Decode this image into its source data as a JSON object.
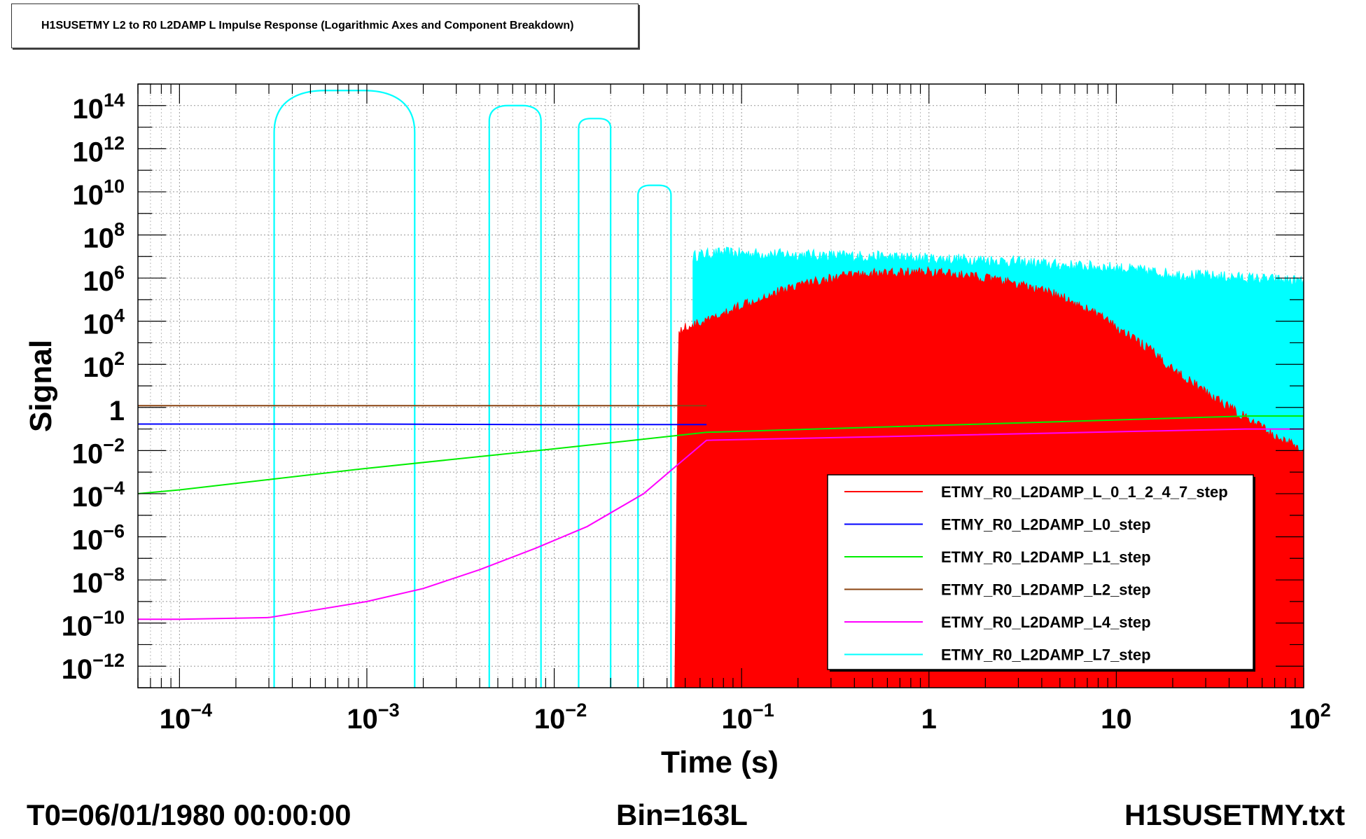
{
  "title": "H1SUSETMY L2 to R0 L2DAMP L Impulse Response (Logarithmic Axes and Component Breakdown)",
  "footer": {
    "t0": "T0=06/01/1980 00:00:00",
    "bin": "Bin=163L",
    "file": "H1SUSETMY.txt"
  },
  "chart_data": {
    "type": "line",
    "title": "H1SUSETMY L2 to R0 L2DAMP L Impulse Response (Logarithmic Axes and Component Breakdown)",
    "xlabel": "Time (s)",
    "ylabel": "Signal",
    "xscale": "log",
    "yscale": "log",
    "xlim": [
      6e-05,
      100
    ],
    "ylim": [
      1e-13,
      1000000000000000.0
    ],
    "x_ticks": [
      {
        "value": 0.0001,
        "base": "10",
        "exp": "−4"
      },
      {
        "value": 0.001,
        "base": "10",
        "exp": "−3"
      },
      {
        "value": 0.01,
        "base": "10",
        "exp": "−2"
      },
      {
        "value": 0.1,
        "base": "10",
        "exp": "−1"
      },
      {
        "value": 1,
        "base": "1",
        "exp": ""
      },
      {
        "value": 10,
        "base": "10",
        "exp": ""
      },
      {
        "value": 100,
        "base": "10",
        "exp": "2"
      }
    ],
    "y_ticks": [
      {
        "value": 100000000000000.0,
        "base": "10",
        "exp": "14"
      },
      {
        "value": 1000000000000.0,
        "base": "10",
        "exp": "12"
      },
      {
        "value": 10000000000.0,
        "base": "10",
        "exp": "10"
      },
      {
        "value": 100000000.0,
        "base": "10",
        "exp": "8"
      },
      {
        "value": 1000000.0,
        "base": "10",
        "exp": "6"
      },
      {
        "value": 10000.0,
        "base": "10",
        "exp": "4"
      },
      {
        "value": 100.0,
        "base": "10",
        "exp": "2"
      },
      {
        "value": 1,
        "base": "1",
        "exp": ""
      },
      {
        "value": 0.01,
        "base": "10",
        "exp": "−2"
      },
      {
        "value": 0.0001,
        "base": "10",
        "exp": "−4"
      },
      {
        "value": 1e-06,
        "base": "10",
        "exp": "−6"
      },
      {
        "value": 1e-08,
        "base": "10",
        "exp": "−8"
      },
      {
        "value": 1e-10,
        "base": "10",
        "exp": "−10"
      },
      {
        "value": 1e-12,
        "base": "10",
        "exp": "−12"
      }
    ],
    "grid": true,
    "legend_position": "bottom-right",
    "series": [
      {
        "name": "ETMY_R0_L2DAMP_L_0_1_2_4_7_step",
        "color": "#ff0000",
        "style": "filled-noise",
        "x": [
          0.044,
          0.046,
          0.05,
          0.06,
          0.08,
          0.1,
          0.2,
          0.4,
          1,
          2,
          3,
          5,
          8,
          10,
          15,
          20,
          30,
          50,
          70,
          100
        ],
        "y": [
          1e-13,
          3000.0,
          5000.0,
          8000.0,
          20000.0,
          60000.0,
          500000.0,
          1500000.0,
          2000000.0,
          1000000.0,
          500000.0,
          150000.0,
          20000.0,
          5000.0,
          500.0,
          60,
          5,
          0.3,
          0.05,
          0.01
        ]
      },
      {
        "name": "ETMY_R0_L2DAMP_L0_step",
        "color": "#0000ff",
        "style": "line",
        "x": [
          6e-05,
          0.001,
          0.01,
          0.065
        ],
        "y": [
          0.17,
          0.17,
          0.16,
          0.16
        ]
      },
      {
        "name": "ETMY_R0_L2DAMP_L1_step",
        "color": "#00ee00",
        "style": "line",
        "x": [
          6e-05,
          0.0001,
          0.001,
          0.01,
          0.065,
          50,
          100
        ],
        "y": [
          0.0001,
          0.00015,
          0.0015,
          0.012,
          0.07,
          0.4,
          0.4
        ]
      },
      {
        "name": "ETMY_R0_L2DAMP_L2_step",
        "color": "#8b4513",
        "style": "line",
        "x": [
          6e-05,
          0.001,
          0.01,
          0.065
        ],
        "y": [
          1.2,
          1.2,
          1.2,
          1.2
        ]
      },
      {
        "name": "ETMY_R0_L2DAMP_L4_step",
        "color": "#ff00ff",
        "style": "line",
        "x": [
          6e-05,
          0.0001,
          0.0003,
          0.001,
          0.002,
          0.004,
          0.008,
          0.015,
          0.03,
          0.045,
          0.065,
          50,
          100
        ],
        "y": [
          1.5e-10,
          1.5e-10,
          1.8e-10,
          1e-09,
          4e-09,
          3e-08,
          3e-07,
          3e-06,
          0.0001,
          0.002,
          0.03,
          0.1,
          0.1
        ]
      },
      {
        "name": "ETMY_R0_L2DAMP_L7_step",
        "color": "#00ffff",
        "style": "filled-noise",
        "x": [
          0.055,
          0.06,
          0.08,
          0.1,
          0.2,
          0.5,
          1,
          2,
          5,
          10,
          20,
          50,
          100
        ],
        "y": [
          10000000.0,
          12000000.0,
          15000000.0,
          14000000.0,
          12000000.0,
          10000000.0,
          8000000.0,
          7000000.0,
          4000000.0,
          3000000.0,
          1500000.0,
          1000000.0,
          700000.0
        ],
        "lobes": [
          [
            0.00032,
            0.0018,
            500000000000000.0
          ],
          [
            0.0045,
            0.0085,
            100000000000000.0
          ],
          [
            0.0135,
            0.02,
            25000000000000.0
          ],
          [
            0.028,
            0.042,
            20000000000.0
          ]
        ]
      }
    ]
  }
}
